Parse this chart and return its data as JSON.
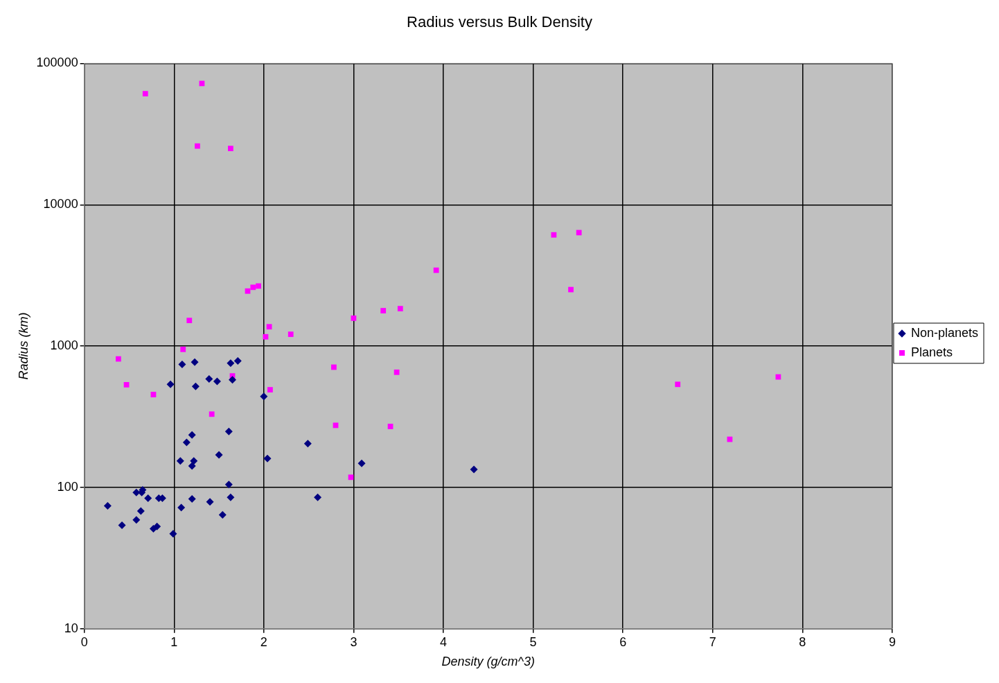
{
  "chart_data": {
    "type": "scatter",
    "title": "Radius versus Bulk Density",
    "xlabel": "Density (g/cm^3)",
    "ylabel": "Radius (km)",
    "xlim": [
      0,
      9
    ],
    "xticks": [
      0,
      1,
      2,
      3,
      4,
      5,
      6,
      7,
      8,
      9
    ],
    "ylim": [
      10,
      100000
    ],
    "yticks": [
      10,
      100,
      1000,
      10000,
      100000
    ],
    "log": "y",
    "grid": true,
    "legend": "right",
    "series": [
      {
        "name": "Non-planets",
        "color": "#000080",
        "marker": "diamond",
        "x": [
          0.26,
          0.42,
          0.58,
          0.65,
          0.64,
          0.71,
          0.63,
          0.58,
          0.77,
          0.81,
          0.83,
          0.87,
          0.99,
          0.96,
          1.09,
          1.23,
          1.24,
          1.39,
          1.48,
          1.63,
          1.71,
          1.65,
          2.0,
          1.2,
          1.14,
          1.61,
          1.5,
          1.07,
          1.22,
          1.2,
          2.04,
          2.49,
          1.61,
          1.2,
          1.08,
          1.4,
          1.63,
          1.54,
          2.6,
          3.09,
          4.34
        ],
        "values": [
          74,
          54,
          92,
          96,
          92,
          84,
          68,
          59,
          51,
          53,
          84,
          84,
          47,
          537,
          742,
          770,
          518,
          585,
          562,
          757,
          785,
          578,
          440,
          235,
          208,
          249,
          170,
          154,
          154,
          142,
          160,
          204,
          105,
          83,
          72,
          79,
          85,
          64,
          85,
          148,
          134
        ]
      },
      {
        "name": "Planets",
        "color": "#ff00ff",
        "marker": "square",
        "x": [
          0.68,
          1.31,
          1.26,
          1.63,
          0.38,
          0.47,
          0.77,
          1.1,
          1.65,
          2.07,
          1.42,
          1.17,
          1.82,
          1.88,
          1.94,
          2.06,
          2.02,
          2.3,
          3.0,
          3.33,
          3.52,
          3.92,
          2.78,
          3.48,
          2.8,
          3.41,
          2.97,
          5.23,
          5.51,
          5.42,
          6.61,
          7.19,
          7.73
        ],
        "values": [
          61000,
          72000,
          26000,
          25000,
          812,
          533,
          454,
          948,
          615,
          491,
          330,
          1518,
          2450,
          2605,
          2660,
          1370,
          1163,
          1212,
          1575,
          1780,
          1840,
          3440,
          709,
          653,
          275,
          270,
          118,
          6120,
          6350,
          2510,
          536,
          219,
          605
        ]
      }
    ]
  }
}
